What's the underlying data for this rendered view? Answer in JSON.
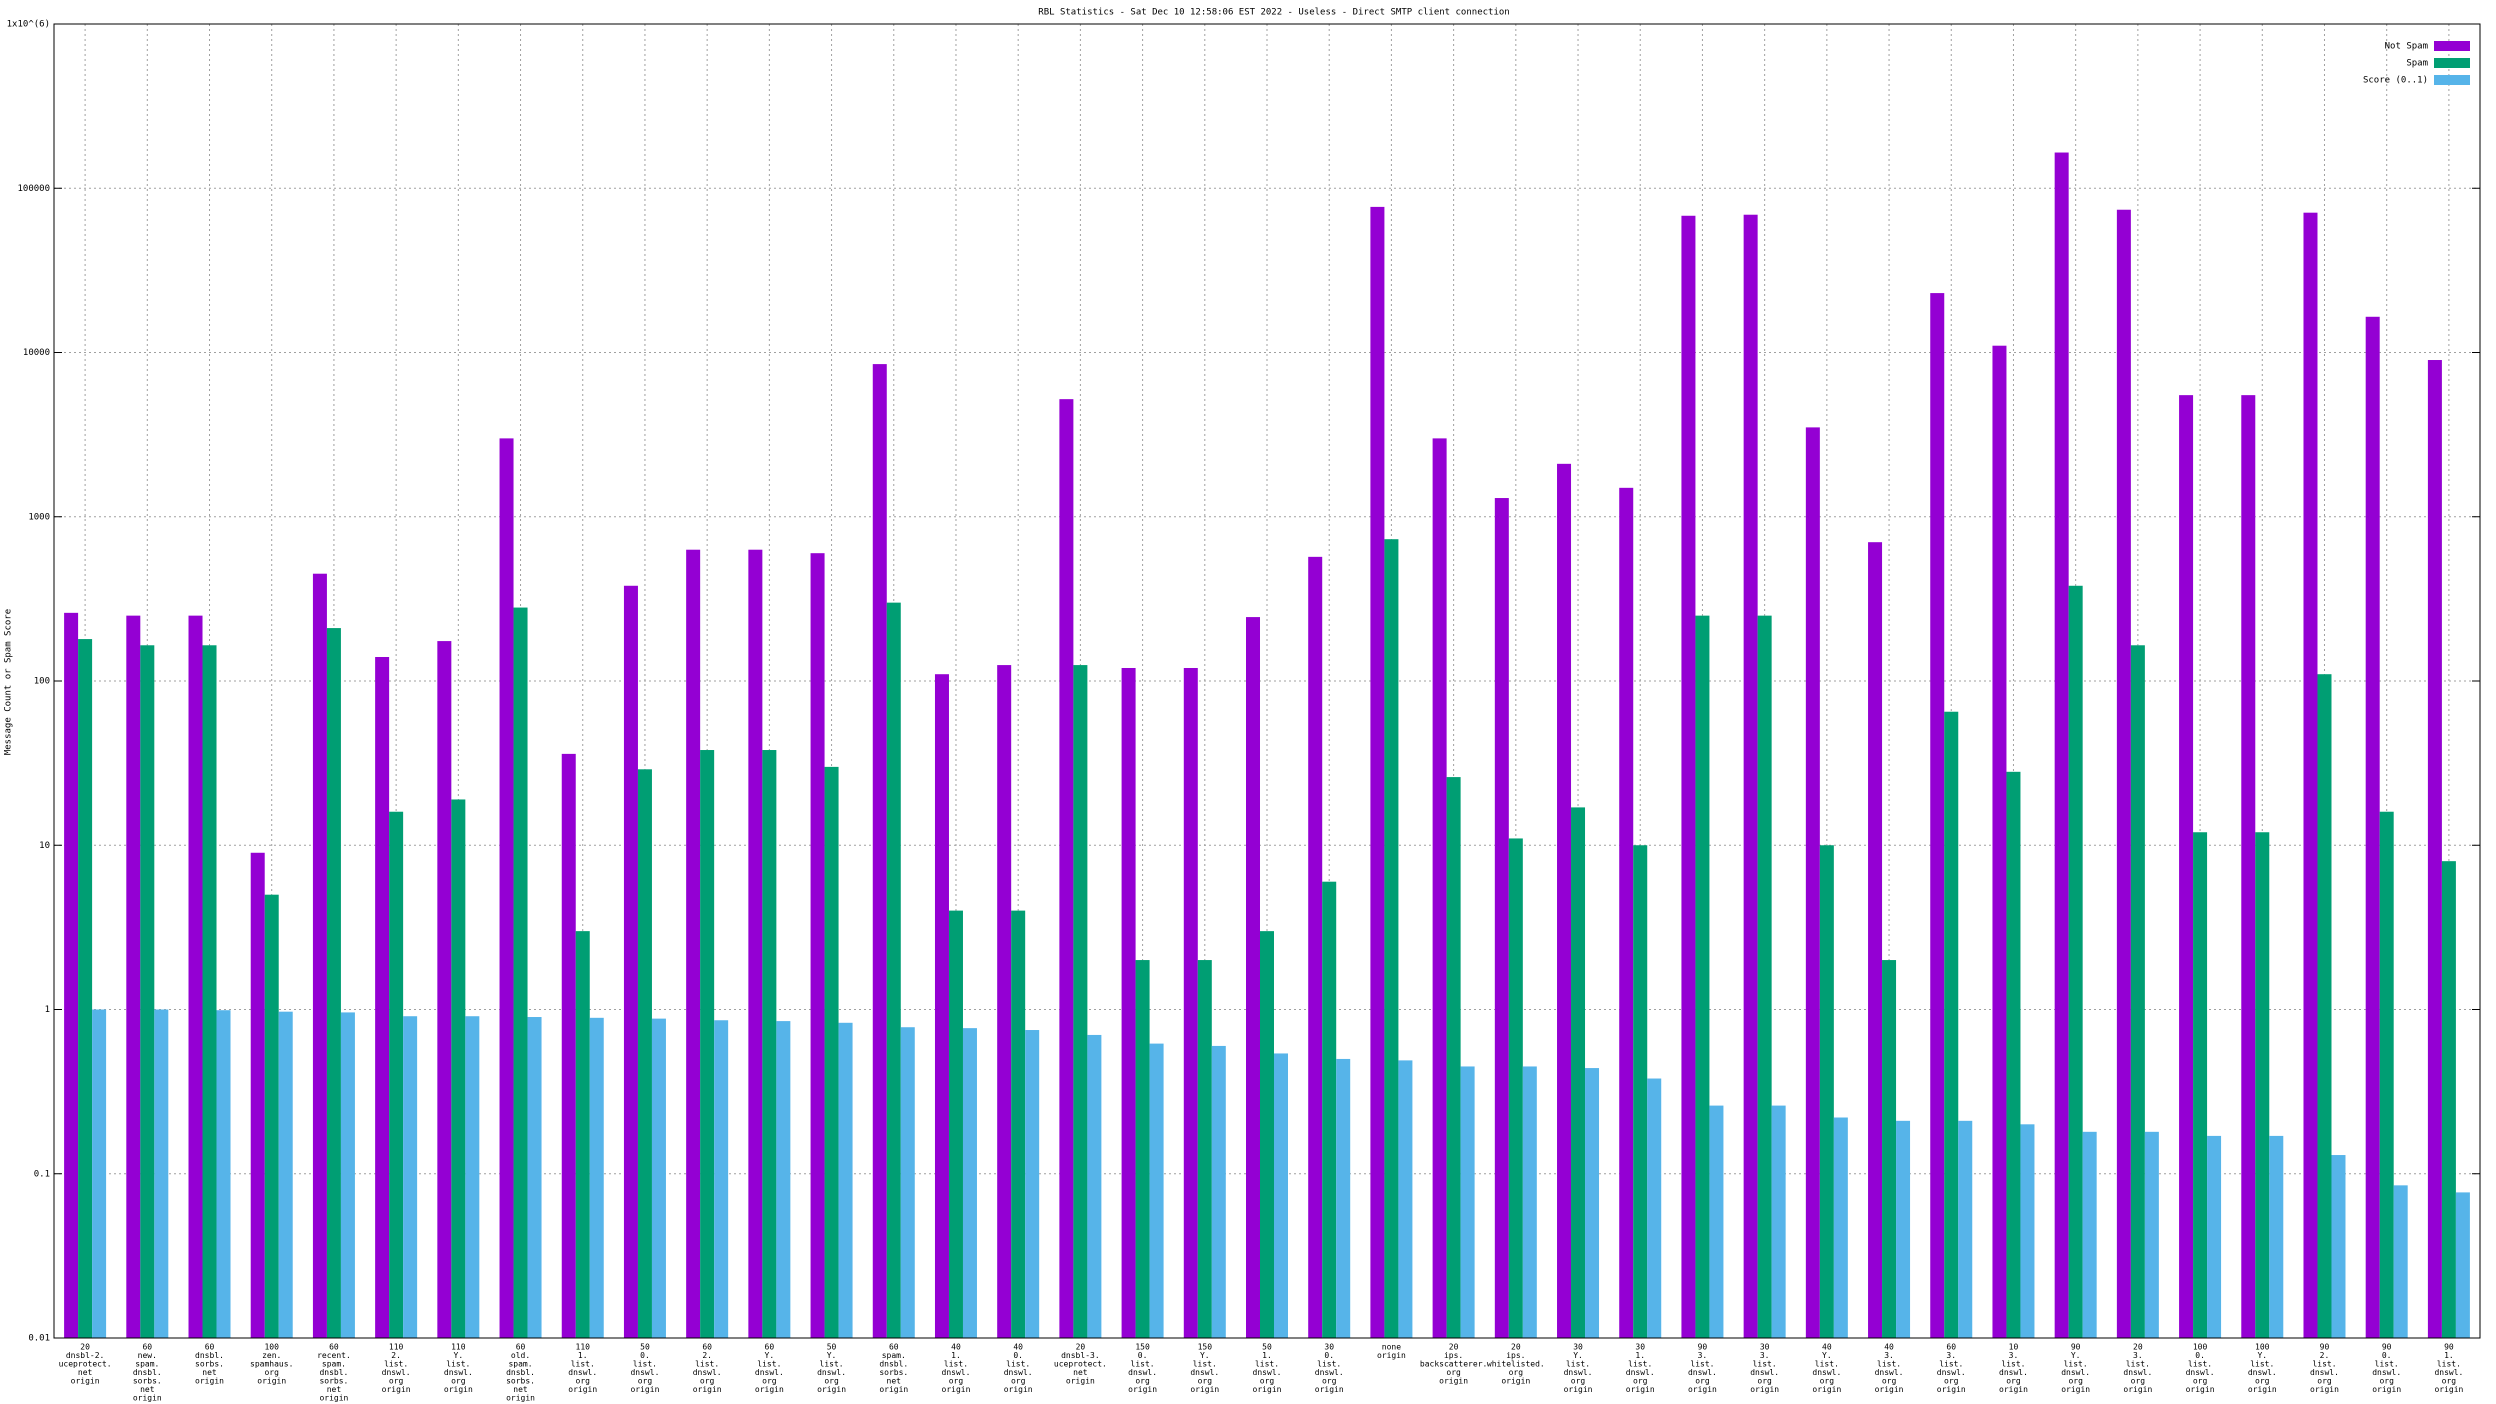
{
  "chart_data": {
    "type": "bar",
    "title": "RBL Statistics - Sat Dec 10 12:58:06 EST 2022 - Useless - Direct SMTP client connection",
    "ylabel": "Message Count or Spam Score",
    "log_scale": true,
    "grid": true,
    "legend": "top-right",
    "ylim": [
      0.01,
      1000000
    ],
    "yticks": [
      0.01,
      0.1,
      1,
      10,
      100,
      1000,
      10000,
      100000,
      {
        "value": 1000000,
        "label": "1x10^(6)"
      }
    ],
    "categories": [
      [
        "20",
        "dnsbl-2.",
        "uceprotect.",
        "net",
        "origin"
      ],
      [
        "60",
        "new.",
        "spam.",
        "dnsbl.",
        "sorbs.",
        "net",
        "origin"
      ],
      [
        "60",
        "dnsbl.",
        "sorbs.",
        "net",
        "origin"
      ],
      [
        "100",
        "zen.",
        "spamhaus.",
        "org",
        "origin"
      ],
      [
        "60",
        "recent.",
        "spam.",
        "dnsbl.",
        "sorbs.",
        "net",
        "origin"
      ],
      [
        "110",
        "2.",
        "list.",
        "dnswl.",
        "org",
        "origin"
      ],
      [
        "110",
        "Y.",
        "list.",
        "dnswl.",
        "org",
        "origin"
      ],
      [
        "60",
        "old.",
        "spam.",
        "dnsbl.",
        "sorbs.",
        "net",
        "origin"
      ],
      [
        "110",
        "1.",
        "list.",
        "dnswl.",
        "org",
        "origin"
      ],
      [
        "50",
        "0.",
        "list.",
        "dnswl.",
        "org",
        "origin"
      ],
      [
        "60",
        "2.",
        "list.",
        "dnswl.",
        "org",
        "origin"
      ],
      [
        "60",
        "Y.",
        "list.",
        "dnswl.",
        "org",
        "origin"
      ],
      [
        "50",
        "Y.",
        "list.",
        "dnswl.",
        "org",
        "origin"
      ],
      [
        "60",
        "spam.",
        "dnsbl.",
        "sorbs.",
        "net",
        "origin"
      ],
      [
        "40",
        "1.",
        "list.",
        "dnswl.",
        "org",
        "origin"
      ],
      [
        "40",
        "0.",
        "list.",
        "dnswl.",
        "org",
        "origin"
      ],
      [
        "20",
        "dnsbl-3.",
        "uceprotect.",
        "net",
        "origin"
      ],
      [
        "150",
        "0.",
        "list.",
        "dnswl.",
        "org",
        "origin"
      ],
      [
        "150",
        "Y.",
        "list.",
        "dnswl.",
        "org",
        "origin"
      ],
      [
        "50",
        "1.",
        "list.",
        "dnswl.",
        "org",
        "origin"
      ],
      [
        "30",
        "0.",
        "list.",
        "dnswl.",
        "org",
        "origin"
      ],
      [
        "none",
        "origin"
      ],
      [
        "20",
        "ips.",
        "backscatterer.",
        "org",
        "origin"
      ],
      [
        "20",
        "ips.",
        "whitelisted.",
        "org",
        "origin"
      ],
      [
        "30",
        "Y.",
        "list.",
        "dnswl.",
        "org",
        "origin"
      ],
      [
        "30",
        "1.",
        "list.",
        "dnswl.",
        "org",
        "origin"
      ],
      [
        "90",
        "3.",
        "list.",
        "dnswl.",
        "org",
        "origin"
      ],
      [
        "30",
        "3.",
        "list.",
        "dnswl.",
        "org",
        "origin"
      ],
      [
        "40",
        "Y.",
        "list.",
        "dnswl.",
        "org",
        "origin"
      ],
      [
        "40",
        "3.",
        "list.",
        "dnswl.",
        "org",
        "origin"
      ],
      [
        "60",
        "3.",
        "list.",
        "dnswl.",
        "org",
        "origin"
      ],
      [
        "10",
        "3.",
        "list.",
        "dnswl.",
        "org",
        "origin"
      ],
      [
        "90",
        "Y.",
        "list.",
        "dnswl.",
        "org",
        "origin"
      ],
      [
        "20",
        "3.",
        "list.",
        "dnswl.",
        "org",
        "origin"
      ],
      [
        "100",
        "0.",
        "list.",
        "dnswl.",
        "org",
        "origin"
      ],
      [
        "100",
        "Y.",
        "list.",
        "dnswl.",
        "org",
        "origin"
      ],
      [
        "90",
        "2.",
        "list.",
        "dnswl.",
        "org",
        "origin"
      ],
      [
        "90",
        "0.",
        "list.",
        "dnswl.",
        "org",
        "origin"
      ],
      [
        "90",
        "1.",
        "list.",
        "dnswl.",
        "org",
        "origin"
      ]
    ],
    "series": [
      {
        "name": "Not Spam",
        "color": "#9400d3",
        "values": [
          260,
          250,
          250,
          9,
          450,
          140,
          175,
          3000,
          36,
          380,
          630,
          630,
          600,
          8500,
          110,
          125,
          5200,
          120,
          120,
          245,
          570,
          77000,
          3000,
          1300,
          2100,
          1500,
          68000,
          69000,
          3500,
          700,
          23000,
          11000,
          165000,
          74000,
          5500,
          5500,
          71000,
          16500,
          9000
        ]
      },
      {
        "name": "Spam",
        "color": "#009e73",
        "values": [
          180,
          165,
          165,
          5,
          210,
          16,
          19,
          280,
          3,
          29,
          38,
          38,
          30,
          300,
          4,
          4,
          125,
          2,
          2,
          3,
          6,
          730,
          26,
          11,
          17,
          10,
          250,
          250,
          10,
          2,
          65,
          28,
          380,
          165,
          12,
          12,
          110,
          16,
          8
        ]
      },
      {
        "name": "Score (0..1)",
        "color": "#56b4e9",
        "values": [
          1.0,
          1.0,
          0.99,
          0.97,
          0.96,
          0.91,
          0.91,
          0.9,
          0.89,
          0.88,
          0.86,
          0.85,
          0.83,
          0.78,
          0.77,
          0.75,
          0.7,
          0.62,
          0.6,
          0.54,
          0.5,
          0.49,
          0.45,
          0.45,
          0.44,
          0.38,
          0.26,
          0.26,
          0.22,
          0.21,
          0.21,
          0.2,
          0.18,
          0.18,
          0.17,
          0.17,
          0.13,
          0.085,
          0.077
        ]
      }
    ]
  }
}
